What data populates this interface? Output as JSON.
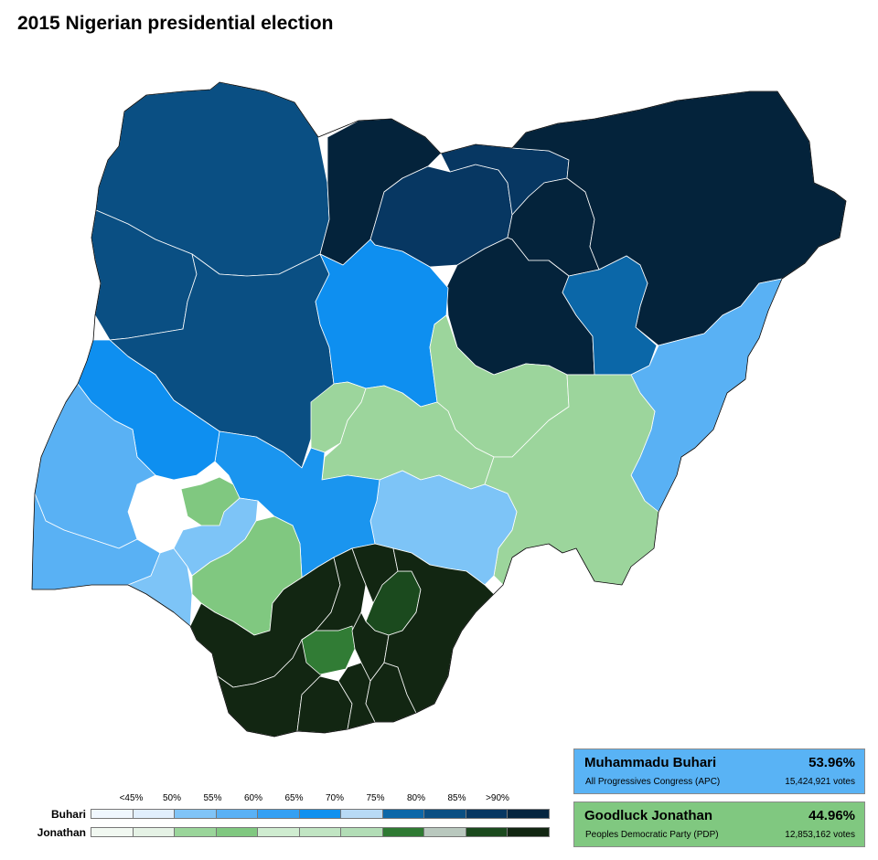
{
  "title": "2015 Nigerian presidential election",
  "legend": {
    "ticks": [
      "<45%",
      "50%",
      "55%",
      "60%",
      "65%",
      "70%",
      "75%",
      "80%",
      "85%",
      ">90%"
    ],
    "rows": [
      {
        "label": "Buhari",
        "colors": [
          "#f0f7fe",
          "#e1effd",
          "#80c4f7",
          "#5ab1f5",
          "#35a0f3",
          "#1191ef",
          "#b8daf5",
          "#0b67a8",
          "#0a4f83",
          "#073762",
          "#05253f"
        ]
      },
      {
        "label": "Jonathan",
        "colors": [
          "#f1f8f1",
          "#e5f2e5",
          "#9ad59a",
          "#80c880",
          "#cfecd0",
          "#c1e5c3",
          "#b2ddb6",
          "#2f7a33",
          "#b9c8be",
          "#1b4a1e",
          "#122612"
        ]
      }
    ]
  },
  "candidates": [
    {
      "name": "Muhammadu Buhari",
      "party": "All Progressives Congress (APC)",
      "percent": "53.96%",
      "votes": "15,424,921 votes",
      "color": "#59b3f5"
    },
    {
      "name": "Goodluck Jonathan",
      "party": "Peoples Democratic Party (PDP)",
      "percent": "44.96%",
      "votes": "12,853,162 votes",
      "color": "#80c880"
    }
  ],
  "map": {
    "colors": {
      "buhari_60": "#59b1f4",
      "buhari_65": "#1a95ef",
      "buhari_70": "#0e8ff0",
      "buhari_55": "#7dc4f7",
      "buhari_80": "#0b67a8",
      "buhari_85": "#0a4f83",
      "buhari_90": "#073762",
      "buhari_95": "#04233b",
      "jonathan_55": "#9cd59c",
      "jonathan_60": "#80c880",
      "jonathan_80": "#317c35",
      "jonathan_85": "#1b4a1e",
      "jonathan_95": "#122612"
    },
    "states": [
      {
        "name": "Sokoto",
        "key": "buhari_85"
      },
      {
        "name": "Zamfara",
        "key": "buhari_85"
      },
      {
        "name": "Kebbi",
        "key": "buhari_85"
      },
      {
        "name": "Niger",
        "key": "buhari_85"
      },
      {
        "name": "Katsina",
        "key": "buhari_95"
      },
      {
        "name": "Kano",
        "key": "buhari_90"
      },
      {
        "name": "Jigawa",
        "key": "buhari_90"
      },
      {
        "name": "Kaduna",
        "key": "buhari_70"
      },
      {
        "name": "Bauchi",
        "key": "buhari_95"
      },
      {
        "name": "Yobe",
        "key": "buhari_95"
      },
      {
        "name": "Borno",
        "key": "buhari_95"
      },
      {
        "name": "Gombe",
        "key": "buhari_80"
      },
      {
        "name": "Adamawa",
        "key": "buhari_60"
      },
      {
        "name": "Plateau",
        "key": "jonathan_55"
      },
      {
        "name": "Nasarawa",
        "key": "jonathan_55"
      },
      {
        "name": "FCT",
        "key": "jonathan_55"
      },
      {
        "name": "Taraba",
        "key": "jonathan_55"
      },
      {
        "name": "Benue",
        "key": "buhari_55"
      },
      {
        "name": "Kogi",
        "key": "buhari_65"
      },
      {
        "name": "Kwara",
        "key": "buhari_70"
      },
      {
        "name": "Oyo",
        "key": "buhari_60"
      },
      {
        "name": "Ogun",
        "key": "buhari_60"
      },
      {
        "name": "Lagos",
        "key": "buhari_55"
      },
      {
        "name": "Osun",
        "key": "jonathan_60"
      },
      {
        "name": "Ondo",
        "key": "jonathan_60"
      },
      {
        "name": "Ekiti",
        "key": "buhari_55"
      },
      {
        "name": "Edo",
        "key": "jonathan_95"
      },
      {
        "name": "Delta",
        "key": "jonathan_95"
      },
      {
        "name": "Ebonyi",
        "key": "jonathan_85"
      },
      {
        "name": "Imo",
        "key": "jonathan_80"
      },
      {
        "name": "Cross River",
        "key": "jonathan_95"
      },
      {
        "name": "Bayelsa",
        "key": "jonathan_95"
      },
      {
        "name": "Rivers",
        "key": "jonathan_95"
      },
      {
        "name": "Akwa Ibom",
        "key": "jonathan_95"
      },
      {
        "name": "Anambra",
        "key": "jonathan_95"
      },
      {
        "name": "Enugu",
        "key": "jonathan_95"
      },
      {
        "name": "Abia",
        "key": "jonathan_95"
      }
    ]
  }
}
